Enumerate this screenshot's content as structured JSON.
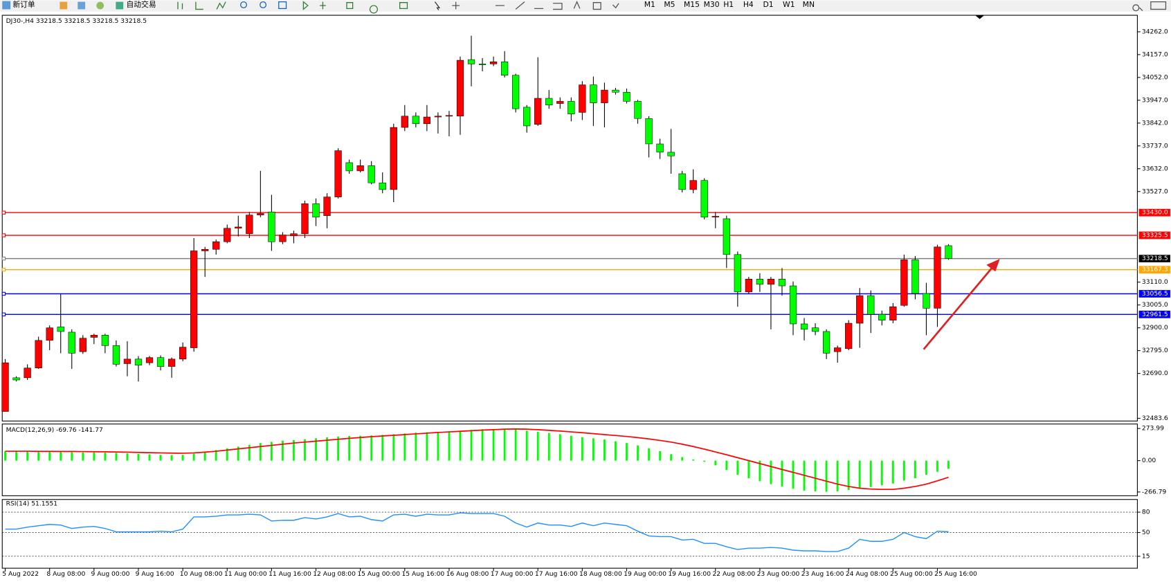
{
  "toolbar": {
    "buttons": [
      "新订单",
      "自动交易"
    ],
    "timeframes": [
      "M1",
      "M5",
      "M15",
      "M30",
      "H1",
      "H4",
      "D1",
      "W1",
      "MN"
    ]
  },
  "chart_data": [
    {
      "type": "candlestick",
      "title": "DJ30-,H4 33218.5 33218.5 33218.5 33218.5",
      "up_color": "#ff0000",
      "down_color": "#00ff00",
      "categories": [
        "5 Aug 2022",
        null,
        null,
        null,
        "8 Aug 08:00",
        null,
        null,
        null,
        "9 Aug 00:00",
        null,
        null,
        null,
        "9 Aug 16:00",
        null,
        null,
        null,
        "10 Aug 08:00",
        null,
        null,
        null,
        "11 Aug 00:00",
        null,
        null,
        null,
        "11 Aug 16:00",
        null,
        null,
        null,
        "12 Aug 08:00",
        null,
        null,
        null,
        "15 Aug 00:00",
        null,
        null,
        null,
        "15 Aug 16:00",
        null,
        null,
        null,
        "16 Aug 08:00",
        null,
        null,
        null,
        "17 Aug 00:00",
        null,
        null,
        null,
        "17 Aug 16:00",
        null,
        null,
        null,
        "18 Aug 08:00",
        null,
        null,
        null,
        "19 Aug 00:00",
        null,
        null,
        null,
        "19 Aug 16:00",
        null,
        null,
        null,
        "22 Aug 08:00",
        null,
        null,
        null,
        "23 Aug 00:00",
        null,
        null,
        null,
        "23 Aug 16:00",
        null,
        null,
        null,
        "24 Aug 08:00",
        null,
        null,
        null,
        "25 Aug 00:00",
        null,
        null,
        null,
        "25 Aug 16:00",
        null
      ],
      "open": [
        32515,
        32670,
        32670,
        32715,
        32842,
        32904,
        32880,
        32790,
        32856,
        32866,
        32818,
        32735,
        32756,
        32739,
        32763,
        32722,
        32756,
        32808,
        33254,
        33261,
        33296,
        33358,
        33333,
        33419,
        33433,
        33296,
        33323,
        33333,
        33471,
        33416,
        33502,
        33660,
        33622,
        33646,
        33567,
        33536,
        33822,
        33874,
        33839,
        33870,
        33874,
        33874,
        34134,
        34114,
        34114,
        34124,
        34062,
        33915,
        33836,
        33956,
        33932,
        33942,
        33891,
        34018,
        33935,
        33994,
        33984,
        33942,
        33863,
        33746,
        33708,
        33609,
        33536,
        33578,
        33409,
        33402,
        33237,
        33065,
        33124,
        33100,
        33124,
        33093,
        32918,
        32900,
        32883,
        32790,
        32804,
        32921,
        33048,
        32962,
        32935,
        33003,
        33213,
        33058,
        32990,
        33278
      ],
      "high": [
        32756,
        32677,
        32732,
        32859,
        32911,
        33055,
        32893,
        32866,
        32873,
        32873,
        32842,
        32838,
        32770,
        32770,
        32773,
        32763,
        32832,
        33313,
        33272,
        33306,
        33375,
        33416,
        33433,
        33622,
        33512,
        33340,
        33347,
        33485,
        33495,
        33519,
        33726,
        33674,
        33674,
        33667,
        33615,
        33839,
        33925,
        33891,
        33925,
        33891,
        33898,
        34148,
        34244,
        34141,
        34148,
        34173,
        34069,
        33925,
        34145,
        33994,
        33960,
        33960,
        34035,
        34056,
        34028,
        34004,
        34001,
        33949,
        33874,
        33770,
        33815,
        33622,
        33629,
        33588,
        33433,
        33416,
        33251,
        33134,
        33151,
        33134,
        33175,
        33113,
        32945,
        32921,
        32893,
        32818,
        32935,
        33083,
        33072,
        32979,
        33014,
        33237,
        33230,
        33107,
        33282,
        33285
      ],
      "low": [
        32515,
        32653,
        32660,
        32711,
        32797,
        32783,
        32711,
        32780,
        32825,
        32783,
        32722,
        32677,
        32653,
        32728,
        32704,
        32670,
        32746,
        32790,
        33134,
        33237,
        33289,
        33320,
        33313,
        33409,
        33254,
        33285,
        33289,
        33313,
        33368,
        33358,
        33495,
        33609,
        33615,
        33560,
        33519,
        33478,
        33805,
        33822,
        33805,
        33794,
        33781,
        33788,
        34011,
        34080,
        34104,
        34052,
        33891,
        33798,
        33829,
        33908,
        33908,
        33850,
        33856,
        33829,
        33822,
        33973,
        33932,
        33839,
        33684,
        33677,
        33609,
        33523,
        33519,
        33399,
        33358,
        33175,
        32997,
        33058,
        33065,
        32893,
        33048,
        32866,
        32842,
        32866,
        32756,
        32739,
        32797,
        32808,
        32876,
        32911,
        32921,
        32997,
        33031,
        32866,
        32904,
        33213
      ],
      "close": [
        32739,
        32660,
        32715,
        32842,
        32900,
        32883,
        32783,
        32852,
        32866,
        32818,
        32732,
        32756,
        32728,
        32763,
        32722,
        32756,
        32811,
        33254,
        33261,
        33296,
        33358,
        33364,
        33419,
        33426,
        33296,
        33327,
        33333,
        33471,
        33409,
        33502,
        33715,
        33622,
        33646,
        33567,
        33536,
        33822,
        33874,
        33839,
        33870,
        33874,
        33877,
        34131,
        34114,
        34110,
        34124,
        34062,
        33908,
        33829,
        33956,
        33925,
        33942,
        33884,
        34018,
        33935,
        33994,
        33984,
        33942,
        33863,
        33746,
        33708,
        33691,
        33536,
        33578,
        33409,
        33413,
        33237,
        33065,
        33124,
        33100,
        33124,
        33093,
        32918,
        32893,
        32883,
        32783,
        32808,
        32921,
        33048,
        32962,
        32935,
        32997,
        33213,
        33058,
        32990,
        33272,
        33218.5
      ],
      "ylim": [
        32471,
        34338
      ],
      "yticks": [
        {
          "value": 34262,
          "label": "34262.0"
        },
        {
          "value": 34157,
          "label": "34157.0"
        },
        {
          "value": 34052,
          "label": "34052.0"
        },
        {
          "value": 33947,
          "label": "33947.0"
        },
        {
          "value": 33842,
          "label": "33842.0"
        },
        {
          "value": 33737,
          "label": "33737.0"
        },
        {
          "value": 33632,
          "label": "33632.0"
        },
        {
          "value": 33527,
          "label": "33527.0"
        },
        {
          "value": 33110,
          "label": "33110.0"
        },
        {
          "value": 33005,
          "label": "33005.0"
        },
        {
          "value": 32900,
          "label": "32900.0"
        },
        {
          "value": 32795,
          "label": "32795.0"
        },
        {
          "value": 32690,
          "label": "32690.0"
        },
        {
          "value": 32483.6,
          "label": "32483.6"
        }
      ],
      "levels": [
        {
          "value": 33430,
          "label": "33430.0",
          "color": "#ff0000",
          "label_fill": "#ff0000"
        },
        {
          "value": 33325.5,
          "label": "33325.5",
          "color": "#ff0000",
          "label_fill": "#ff0000"
        },
        {
          "value": 33218.5,
          "label": "33218.5",
          "color": "#808080",
          "label_fill": "#000000"
        },
        {
          "value": 33167.3,
          "label": "33167.3",
          "color": "#ffa500",
          "label_fill": "#ffa500"
        },
        {
          "value": 33056.5,
          "label": "33056.5",
          "color": "#0000ff",
          "label_fill": "#0000ff"
        },
        {
          "value": 32961.5,
          "label": "32961.5",
          "color": "#0000ff",
          "label_fill": "#0000ff"
        }
      ]
    },
    {
      "type": "macd",
      "title": "MACD(12,26,9) -69.76 -141.77",
      "ylim": [
        -299,
        312
      ],
      "yticks": [
        273.99,
        {
          "value": 0,
          "label": "0.00"
        },
        -266.79
      ],
      "histogram": {
        "color": "#00ff00",
        "values": [
          80,
          78,
          76,
          75,
          75,
          74,
          72,
          70,
          70,
          68,
          66,
          62,
          58,
          54,
          50,
          48,
          50,
          60,
          75,
          90,
          105,
          120,
          135,
          150,
          160,
          170,
          175,
          182,
          190,
          198,
          205,
          210,
          212,
          215,
          220,
          225,
          232,
          238,
          242,
          245,
          250,
          255,
          262,
          268,
          270,
          272,
          265,
          255,
          245,
          235,
          225,
          212,
          200,
          190,
          180,
          165,
          150,
          130,
          105,
          80,
          55,
          30,
          10,
          -10,
          -40,
          -80,
          -120,
          -150,
          -175,
          -200,
          -220,
          -240,
          -255,
          -262,
          -265,
          -262,
          -250,
          -240,
          -225,
          -210,
          -195,
          -170,
          -150,
          -120,
          -95,
          -69.76
        ]
      },
      "signal": {
        "color": "#ff0000",
        "values": [
          80,
          80,
          80,
          79,
          79,
          78,
          78,
          77,
          76,
          75,
          74,
          72,
          70,
          68,
          66,
          64,
          63,
          66,
          72,
          80,
          90,
          100,
          110,
          120,
          130,
          140,
          150,
          158,
          166,
          174,
          182,
          190,
          197,
          204,
          210,
          216,
          222,
          228,
          234,
          240,
          245,
          250,
          255,
          260,
          264,
          268,
          270,
          268,
          264,
          258,
          252,
          245,
          238,
          230,
          222,
          214,
          206,
          196,
          185,
          172,
          158,
          140,
          120,
          98,
          74,
          50,
          25,
          0,
          -25,
          -50,
          -75,
          -100,
          -125,
          -150,
          -175,
          -200,
          -220,
          -235,
          -242,
          -245,
          -245,
          -235,
          -220,
          -200,
          -172,
          -141.77
        ]
      }
    },
    {
      "type": "line",
      "title": "RSI(14) 51.1551",
      "color": "#1e90ff",
      "ylim": [
        -2.6,
        98.7
      ],
      "yticks": [
        80,
        50,
        15
      ],
      "values": [
        55,
        55,
        58,
        60,
        62,
        61,
        56,
        58,
        59,
        56,
        51,
        51,
        51,
        51,
        52,
        51,
        55,
        73,
        73,
        74,
        76,
        76,
        77,
        76,
        67,
        68,
        68,
        72,
        70,
        73,
        78,
        73,
        74,
        69,
        67,
        76,
        77,
        74,
        77,
        76,
        76,
        79,
        78,
        78,
        78,
        74,
        64,
        58,
        64,
        61,
        61,
        59,
        64,
        60,
        64,
        62,
        60,
        52,
        45,
        44,
        44,
        39,
        40,
        34,
        34,
        29,
        25,
        27,
        27,
        28,
        27,
        24,
        23,
        23,
        22,
        22,
        27,
        40,
        37,
        37,
        40,
        50,
        44,
        41,
        52,
        51.1551
      ]
    }
  ]
}
